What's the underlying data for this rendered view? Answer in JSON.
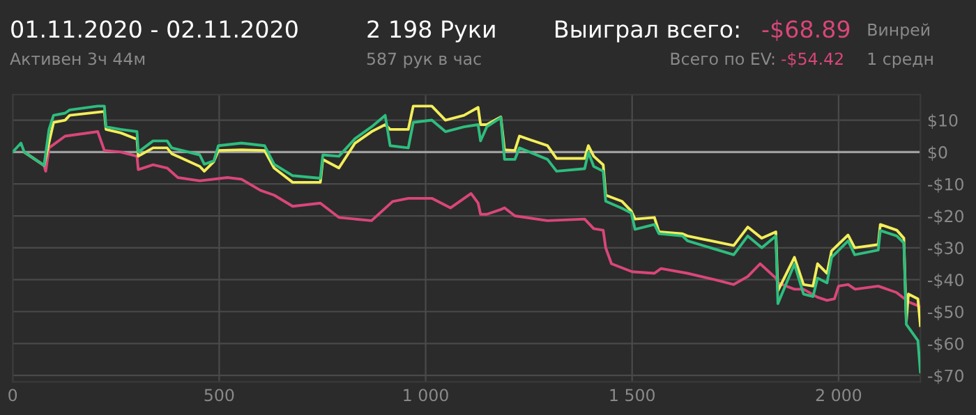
{
  "chart_data": {
    "type": "line",
    "title": "01.11.2020 - 02.11.2020",
    "subtitle": "Активен 3ч 44м",
    "annotations": [
      "2 198 Руки",
      "587 рук в час",
      "Выиграл всего:",
      "-$68.89",
      "Всего по EV:",
      "-$54.42",
      "Винрей",
      "1 средн"
    ],
    "xlim": [
      0,
      2198
    ],
    "xticks": [
      0,
      500,
      {
        "value": 1000,
        "label": "1 000"
      },
      {
        "value": 1500,
        "label": "1 500"
      },
      {
        "value": 2000,
        "label": "2 000"
      }
    ],
    "ylim": [
      -72,
      18
    ],
    "yticks": [
      {
        "value": 10,
        "label": "$10"
      },
      {
        "value": 0,
        "label": "$0"
      },
      {
        "value": -10,
        "label": "-$10"
      },
      {
        "value": -20,
        "label": "-$20"
      },
      {
        "value": -30,
        "label": "-$30"
      },
      {
        "value": -40,
        "label": "-$40"
      },
      {
        "value": -50,
        "label": "-$50"
      },
      {
        "value": -60,
        "label": "-$60"
      },
      {
        "value": -70,
        "label": "-$70"
      }
    ],
    "grid": true,
    "line_style": "solid",
    "marker": "none",
    "ref_lines": [
      {
        "axis": "y",
        "value": 0,
        "color": "#a0a0a0"
      }
    ],
    "series": [
      {
        "color": "#d9467a",
        "x": [
          28,
          76,
          80,
          88,
          127,
          206,
          222,
          262,
          301,
          304,
          340,
          374,
          400,
          453,
          520,
          554,
          600,
          633,
          678,
          745,
          790,
          869,
          920,
          958,
          1015,
          1060,
          1110,
          1127,
          1133,
          1148,
          1182,
          1191,
          1216,
          1295,
          1385,
          1407,
          1430,
          1436,
          1450,
          1500,
          1554,
          1570,
          1634,
          1700,
          1746,
          1780,
          1810,
          1848,
          1853,
          1893,
          1915,
          1949,
          1972,
          1990,
          2000,
          2023,
          2040,
          2096,
          2140,
          2170,
          2198
        ],
        "values": [
          0,
          -4.2,
          -6,
          1.3,
          5,
          6.4,
          0.5,
          0,
          -1.3,
          -5.5,
          -4,
          -5,
          -8,
          -9,
          -8,
          -8.5,
          -12,
          -13.5,
          -17,
          -16,
          -20.5,
          -21.5,
          -15.5,
          -14.5,
          -14.5,
          -17.5,
          -13,
          -16,
          -19.5,
          -19.5,
          -18,
          -17.5,
          -20,
          -21.5,
          -21,
          -24,
          -24.5,
          -30,
          -35,
          -37.5,
          -38,
          -36.5,
          -38,
          -40,
          -41.5,
          -39,
          -35,
          -39.5,
          -41,
          -43,
          -43,
          -45.5,
          -46.5,
          -46,
          -42,
          -41.5,
          -43,
          -42,
          -44,
          -47,
          -48.5
        ]
      },
      {
        "color": "#f2ee5a",
        "x": [
          28,
          76,
          88,
          99,
          127,
          138,
          206,
          222,
          226,
          262,
          301,
          304,
          340,
          374,
          385,
          453,
          464,
          487,
          498,
          554,
          610,
          633,
          678,
          745,
          751,
          790,
          829,
          869,
          902,
          914,
          958,
          970,
          1015,
          1048,
          1093,
          1127,
          1133,
          1148,
          1182,
          1191,
          1216,
          1227,
          1295,
          1317,
          1385,
          1394,
          1407,
          1430,
          1436,
          1475,
          1498,
          1507,
          1554,
          1565,
          1622,
          1634,
          1746,
          1780,
          1814,
          1848,
          1853,
          1893,
          1915,
          1938,
          1949,
          1972,
          1983,
          2023,
          2039,
          2096,
          2101,
          2141,
          2158,
          2164,
          2169,
          2192,
          2198
        ],
        "values": [
          0,
          -4.2,
          3,
          9.3,
          10,
          11.5,
          12.5,
          12.7,
          7.1,
          6,
          4,
          -1.3,
          1.3,
          1.3,
          -0.5,
          -4.5,
          -6,
          -3,
          0.5,
          0.7,
          0.5,
          -5,
          -9.5,
          -9.5,
          -2.3,
          -5,
          2.8,
          6.4,
          8.6,
          7.1,
          7.1,
          14.4,
          14.4,
          10,
          11.5,
          14,
          8.6,
          8.6,
          11,
          0.7,
          0.5,
          5,
          2,
          -2,
          -2,
          2,
          -1.3,
          -4,
          -13.5,
          -15.4,
          -18.5,
          -21,
          -20.5,
          -25,
          -25.6,
          -26.3,
          -29.3,
          -23.5,
          -27,
          -25,
          -43.5,
          -33,
          -41.5,
          -42,
          -35,
          -38,
          -31,
          -26,
          -30,
          -29,
          -22.7,
          -24.5,
          -27,
          -53,
          -44.5,
          -46,
          -54.4
        ]
      },
      {
        "color": "#2ebd7e",
        "x": [
          0,
          20,
          28,
          76,
          88,
          99,
          127,
          138,
          206,
          222,
          226,
          262,
          301,
          304,
          340,
          374,
          385,
          453,
          464,
          487,
          498,
          554,
          610,
          633,
          678,
          745,
          751,
          790,
          829,
          869,
          902,
          914,
          958,
          970,
          1015,
          1048,
          1093,
          1127,
          1133,
          1148,
          1182,
          1191,
          1216,
          1227,
          1295,
          1317,
          1385,
          1394,
          1407,
          1430,
          1436,
          1475,
          1498,
          1507,
          1554,
          1565,
          1622,
          1634,
          1746,
          1780,
          1814,
          1848,
          1853,
          1893,
          1915,
          1938,
          1949,
          1972,
          1983,
          2023,
          2039,
          2096,
          2101,
          2141,
          2158,
          2164,
          2192,
          2198
        ],
        "values": [
          0,
          2.8,
          0,
          -4.2,
          7.1,
          11.5,
          12.2,
          13.2,
          14.4,
          14.4,
          7.9,
          7.1,
          6.4,
          0,
          3.5,
          3.5,
          1.3,
          -0.9,
          -3.8,
          -2.8,
          2,
          2.8,
          2,
          -3.8,
          -7.4,
          -8.2,
          -0.9,
          -1.3,
          4.2,
          7.9,
          11.5,
          2,
          1.3,
          9.3,
          10,
          6.4,
          7.9,
          8.6,
          3.5,
          7.9,
          10.8,
          -2.3,
          -2.3,
          1.3,
          -2.3,
          -6,
          -5.2,
          -0.1,
          -4.5,
          -6,
          -15.4,
          -17.6,
          -19.1,
          -24.2,
          -22.7,
          -25.6,
          -26.3,
          -27.8,
          -32.2,
          -26.3,
          -30,
          -26.3,
          -47.5,
          -35.1,
          -44.5,
          -45.3,
          -39.5,
          -41,
          -33,
          -27.8,
          -32.2,
          -30.7,
          -24.6,
          -26.3,
          -28.5,
          -54,
          -59.1,
          -68.9
        ]
      }
    ]
  }
}
